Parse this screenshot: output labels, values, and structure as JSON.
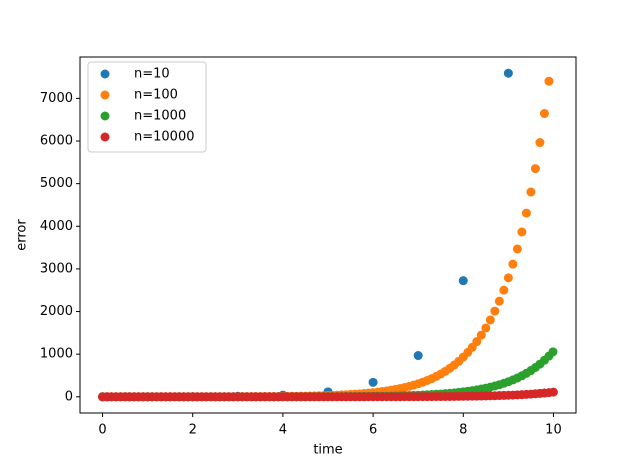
{
  "chart_data": {
    "type": "scatter",
    "xlabel": "time",
    "ylabel": "error",
    "xlim": [
      -0.5,
      10.5
    ],
    "ylim": [
      -380,
      7971
    ],
    "xticks": [
      0,
      2,
      4,
      6,
      8,
      10
    ],
    "yticks": [
      0,
      1000,
      2000,
      3000,
      4000,
      5000,
      6000,
      7000
    ],
    "grid": false,
    "legend": "upper left",
    "series": [
      {
        "name": "n=10",
        "color": "#1f77b4",
        "x": [
          0,
          1,
          2,
          3,
          4,
          5,
          6,
          7,
          8,
          9
        ],
        "values": [
          0,
          0.718,
          3.389,
          12.09,
          38.6,
          116.4,
          339.4,
          968.6,
          2725,
          7591
        ]
      },
      {
        "name": "n=100",
        "color": "#ff7f0e",
        "x": [
          0,
          0.1,
          0.2,
          0.3,
          0.4,
          0.5,
          0.6,
          0.7,
          0.8,
          0.9,
          1,
          1.1,
          1.2,
          1.3,
          1.4,
          1.5,
          1.6,
          1.7,
          1.8,
          1.9,
          2,
          2.1,
          2.2,
          2.3,
          2.4,
          2.5,
          2.6,
          2.7,
          2.8,
          2.9,
          3,
          3.1,
          3.2,
          3.3,
          3.4,
          3.5,
          3.6,
          3.7,
          3.8,
          3.9,
          4,
          4.1,
          4.2,
          4.3,
          4.4,
          4.5,
          4.6,
          4.7,
          4.8,
          4.9,
          5,
          5.1,
          5.2,
          5.3,
          5.4,
          5.5,
          5.6,
          5.7,
          5.8,
          5.9,
          6,
          6.1,
          6.2,
          6.3,
          6.4,
          6.5,
          6.6,
          6.7,
          6.8,
          6.9,
          7,
          7.1,
          7.2,
          7.3,
          7.4,
          7.5,
          7.6,
          7.7,
          7.8,
          7.9,
          8,
          8.1,
          8.2,
          8.3,
          8.4,
          8.5,
          8.6,
          8.7,
          8.8,
          8.9,
          9,
          9.1,
          9.2,
          9.3,
          9.4,
          9.5,
          9.6,
          9.7,
          9.8,
          9.9
        ],
        "values": [
          0,
          0.005,
          0.011,
          0.019,
          0.028,
          0.038,
          0.051,
          0.065,
          0.082,
          0.102,
          0.125,
          0.151,
          0.182,
          0.217,
          0.258,
          0.305,
          0.358,
          0.42,
          0.49,
          0.57,
          0.662,
          0.767,
          0.886,
          1.02,
          1.17,
          1.35,
          1.55,
          1.77,
          2.03,
          2.31,
          2.64,
          3.01,
          3.42,
          3.89,
          4.42,
          5.02,
          5.69,
          6.45,
          7.3,
          8.27,
          9.35,
          10.57,
          11.93,
          13.47,
          15.2,
          17.14,
          19.32,
          21.76,
          24.5,
          27.58,
          31.03,
          34.9,
          39.23,
          44.09,
          49.53,
          55.62,
          62.44,
          70.07,
          78.61,
          88.16,
          98.85,
          110.8,
          124.2,
          139.1,
          155.8,
          174.5,
          195.3,
          218.6,
          244.6,
          273.7,
          306.1,
          342.3,
          382.7,
          427.8,
          478.1,
          534.3,
          596.9,
          666.7,
          744.7,
          831.6,
          932,
          1041,
          1162,
          1297,
          1448,
          1615,
          1803,
          2011,
          2243,
          2502,
          2790,
          3111,
          3468,
          3866,
          4309,
          4803,
          5353,
          5965,
          6645,
          7403
        ]
      },
      {
        "name": "n=1000",
        "color": "#2ca02c",
        "x": [
          0,
          0.1,
          0.2,
          0.3,
          0.4,
          0.5,
          0.6,
          0.7,
          0.8,
          0.9,
          1,
          1.1,
          1.2,
          1.3,
          1.4,
          1.5,
          1.6,
          1.7,
          1.8,
          1.9,
          2,
          2.1,
          2.2,
          2.3,
          2.4,
          2.5,
          2.6,
          2.7,
          2.8,
          2.9,
          3,
          3.1,
          3.2,
          3.3,
          3.4,
          3.5,
          3.6,
          3.7,
          3.8,
          3.9,
          4,
          4.1,
          4.2,
          4.3,
          4.4,
          4.5,
          4.6,
          4.7,
          4.8,
          4.9,
          5,
          5.1,
          5.2,
          5.3,
          5.4,
          5.5,
          5.6,
          5.7,
          5.8,
          5.9,
          6,
          6.1,
          6.2,
          6.3,
          6.4,
          6.5,
          6.6,
          6.7,
          6.8,
          6.9,
          7,
          7.1,
          7.2,
          7.3,
          7.4,
          7.5,
          7.6,
          7.7,
          7.8,
          7.9,
          8,
          8.1,
          8.2,
          8.3,
          8.4,
          8.5,
          8.6,
          8.7,
          8.8,
          8.9,
          9,
          9.1,
          9.2,
          9.3,
          9.4,
          9.5,
          9.6,
          9.7,
          9.8,
          9.9,
          9.99
        ],
        "values": [
          0,
          0.0005,
          0.0012,
          0.002,
          0.003,
          0.004,
          0.005,
          0.007,
          0.009,
          0.011,
          0.0135,
          0.0164,
          0.0198,
          0.0237,
          0.0282,
          0.0334,
          0.0394,
          0.0462,
          0.0541,
          0.0631,
          0.0734,
          0.0852,
          0.0986,
          0.114,
          0.131,
          0.151,
          0.174,
          0.2,
          0.229,
          0.262,
          0.299,
          0.342,
          0.39,
          0.444,
          0.506,
          0.576,
          0.654,
          0.743,
          0.844,
          0.957,
          1.085,
          1.229,
          1.391,
          1.574,
          1.78,
          2.012,
          2.273,
          2.567,
          2.897,
          3.268,
          3.64,
          4.1,
          4.62,
          5.2,
          5.86,
          6.59,
          7.42,
          8.34,
          9.38,
          10.54,
          11.84,
          13.3,
          14.94,
          16.78,
          18.83,
          21.13,
          23.7,
          26.59,
          29.81,
          33.43,
          37.46,
          41.99,
          47.04,
          52.7,
          59.02,
          66.1,
          74.01,
          82.85,
          92.73,
          103.8,
          116.1,
          129.9,
          145.3,
          162.5,
          181.7,
          203.1,
          227.1,
          253.8,
          283.7,
          317,
          354.2,
          395.6,
          441.9,
          493.6,
          551.2,
          615.5,
          687.3,
          767.3,
          856.5,
          955.9,
          1055
        ]
      },
      {
        "name": "n=10000",
        "color": "#d62728",
        "x": [
          0,
          0.1,
          0.2,
          0.3,
          0.4,
          0.5,
          0.6,
          0.7,
          0.8,
          0.9,
          1,
          1.1,
          1.2,
          1.3,
          1.4,
          1.5,
          1.6,
          1.7,
          1.8,
          1.9,
          2,
          2.1,
          2.2,
          2.3,
          2.4,
          2.5,
          2.6,
          2.7,
          2.8,
          2.9,
          3,
          3.1,
          3.2,
          3.3,
          3.4,
          3.5,
          3.6,
          3.7,
          3.8,
          3.9,
          4,
          4.1,
          4.2,
          4.3,
          4.4,
          4.5,
          4.6,
          4.7,
          4.8,
          4.9,
          5,
          5.1,
          5.2,
          5.3,
          5.4,
          5.5,
          5.6,
          5.7,
          5.8,
          5.9,
          6,
          6.1,
          6.2,
          6.3,
          6.4,
          6.5,
          6.6,
          6.7,
          6.8,
          6.9,
          7,
          7.1,
          7.2,
          7.3,
          7.4,
          7.5,
          7.6,
          7.7,
          7.8,
          7.9,
          8,
          8.1,
          8.2,
          8.3,
          8.4,
          8.5,
          8.6,
          8.7,
          8.8,
          8.9,
          9,
          9.1,
          9.2,
          9.3,
          9.4,
          9.5,
          9.6,
          9.7,
          9.8,
          9.9,
          9.999
        ],
        "values": [
          0,
          0.0001,
          0.0001,
          0.0002,
          0.0003,
          0.0004,
          0.0005,
          0.0007,
          0.0009,
          0.0011,
          0.0014,
          0.0016,
          0.002,
          0.0024,
          0.0028,
          0.0034,
          0.004,
          0.0046,
          0.0054,
          0.0063,
          0.0074,
          0.0086,
          0.0099,
          0.0114,
          0.0132,
          0.0152,
          0.0175,
          0.02,
          0.023,
          0.0263,
          0.0301,
          0.0343,
          0.0392,
          0.0446,
          0.0508,
          0.0578,
          0.0658,
          0.0747,
          0.0848,
          0.0962,
          0.109,
          0.123,
          0.14,
          0.158,
          0.179,
          0.202,
          0.228,
          0.258,
          0.291,
          0.328,
          0.37,
          0.417,
          0.47,
          0.53,
          0.597,
          0.672,
          0.756,
          0.85,
          0.956,
          1.075,
          1.208,
          1.357,
          1.524,
          1.712,
          1.922,
          2.157,
          2.421,
          2.716,
          3.047,
          3.416,
          3.83,
          4.294,
          4.812,
          5.392,
          6.041,
          6.766,
          7.578,
          8.485,
          9.499,
          10.63,
          11.9,
          13.32,
          14.9,
          16.67,
          18.64,
          20.85,
          23.31,
          26.06,
          29.13,
          32.56,
          36.39,
          40.67,
          45.43,
          50.76,
          56.7,
          63.33,
          70.73,
          78.98,
          88.19,
          98.46,
          109.8
        ]
      }
    ]
  }
}
